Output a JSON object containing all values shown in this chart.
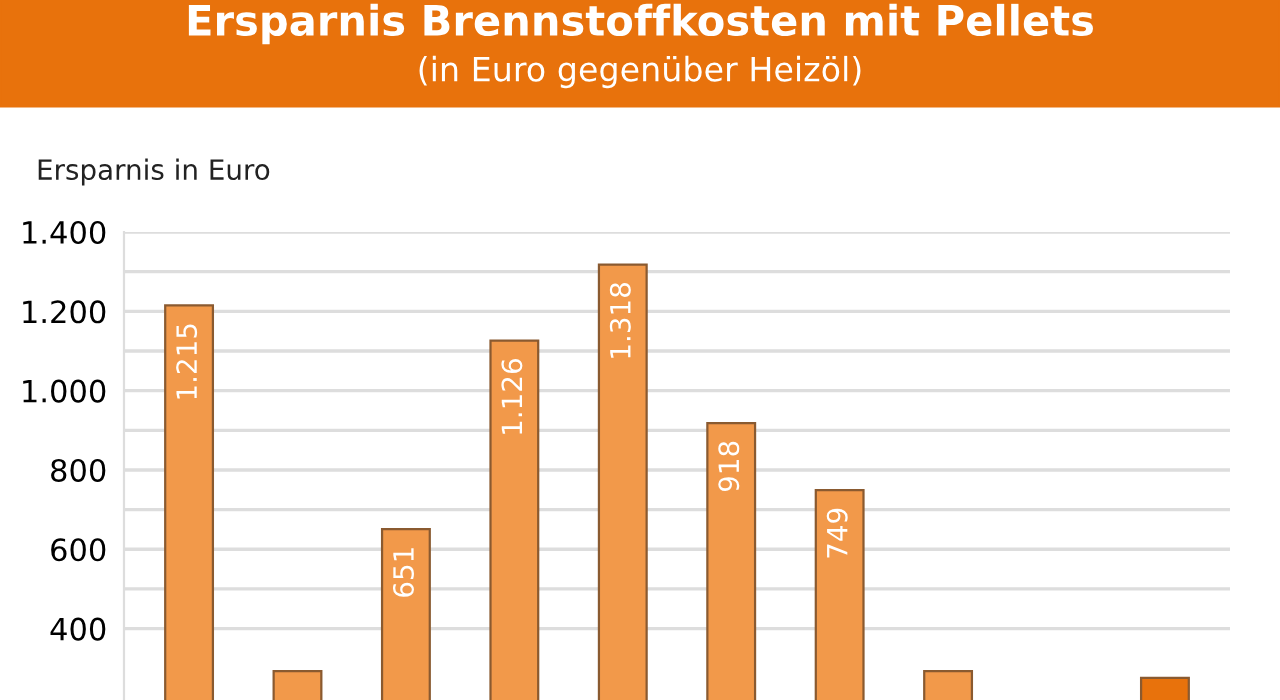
{
  "chart_data": {
    "type": "bar",
    "title": "Ersparnis Brennstoffkosten mit Pellets",
    "subtitle": "(in Euro gegenüber Heizöl)",
    "ylabel": "Ersparnis in Euro",
    "categories": [
      null,
      null,
      null,
      null,
      null,
      null,
      null,
      null,
      null,
      null
    ],
    "values": [
      1215,
      293,
      651,
      1126,
      1318,
      918,
      749,
      293,
      null,
      276
    ],
    "colors": [
      "#f2994a",
      "#f2994a",
      "#f2994a",
      "#f2994a",
      "#f2994a",
      "#f2994a",
      "#f2994a",
      "#f2994a",
      "#f2994a",
      "#e8720c"
    ],
    "value_labels": [
      "1.215",
      null,
      "651",
      "1.126",
      "1.318",
      "918",
      "749",
      null,
      null,
      null
    ],
    "ylim": [
      220,
      1400
    ],
    "yticks": [
      {
        "value": 400,
        "label": "400"
      },
      {
        "value": 500,
        "label": null
      },
      {
        "value": 600,
        "label": "600"
      },
      {
        "value": 700,
        "label": null
      },
      {
        "value": 800,
        "label": "800"
      },
      {
        "value": 900,
        "label": null
      },
      {
        "value": 1000,
        "label": "1.000"
      },
      {
        "value": 1100,
        "label": null
      },
      {
        "value": 1200,
        "label": "1.200"
      },
      {
        "value": 1300,
        "label": null
      },
      {
        "value": 1400,
        "label": "1.400"
      }
    ],
    "grid": "y"
  }
}
